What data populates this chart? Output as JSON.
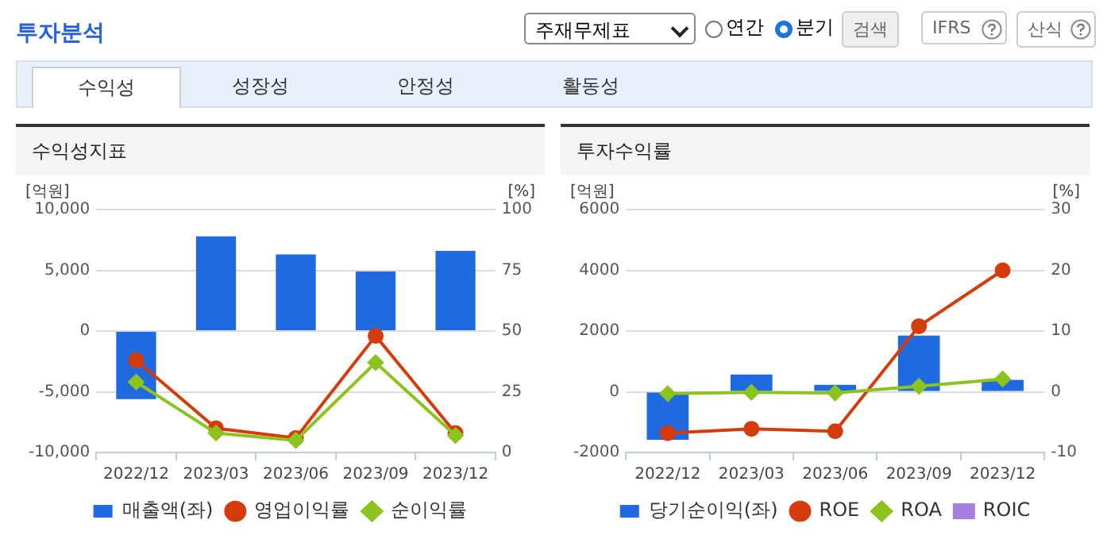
{
  "chart_data": [
    {
      "type": "bar",
      "title": "수익성지표",
      "ylabel": "[억원]",
      "y2label": "[%]",
      "annotations": [
        "투자분석",
        "주재무제표",
        "연간",
        "분기",
        "검색",
        "IFRS",
        "산식",
        "수익성",
        "성장성",
        "안정성",
        "활동성"
      ],
      "categories": [
        "2022/12",
        "2023/03",
        "2023/06",
        "2023/09",
        "2023/12"
      ],
      "series": [
        {
          "name": "매출액(좌)",
          "color": "#1f6ae0",
          "values": [
            -5600,
            7800,
            6300,
            4900,
            6600
          ]
        },
        {
          "name": "영업이익률",
          "type": "line",
          "axis": "y2",
          "marker": "circle",
          "color": "#d43c0c",
          "values": [
            38,
            10,
            6,
            48,
            8
          ]
        },
        {
          "name": "순이익률",
          "type": "line",
          "axis": "y2",
          "marker": "diamond",
          "color": "#8cc31e",
          "values": [
            29,
            8,
            5,
            37,
            7
          ]
        }
      ],
      "ylim": [
        -10000,
        10000
      ],
      "yticks": [
        {
          "value": -10000,
          "label": "-10,000"
        },
        {
          "value": -5000,
          "label": "-5,000"
        },
        0,
        {
          "value": 5000,
          "label": "5,000"
        },
        {
          "value": 10000,
          "label": "10,000"
        }
      ],
      "y2lim": [
        0,
        100
      ],
      "y2ticks": [
        0,
        25,
        50,
        75,
        100
      ],
      "grid": "y",
      "legend": "bottom"
    },
    {
      "type": "bar",
      "title": "투자수익률",
      "ylabel": "[억원]",
      "y2label": "[%]",
      "categories": [
        "2022/12",
        "2023/03",
        "2023/06",
        "2023/09",
        "2023/12"
      ],
      "series": [
        {
          "name": "당기순이익(좌)",
          "color": "#1f6ae0",
          "values": [
            -1580,
            570,
            230,
            1850,
            390
          ]
        },
        {
          "name": "ROE",
          "type": "line",
          "axis": "y2",
          "marker": "circle",
          "color": "#d43c0c",
          "values": [
            -6.8,
            -6.1,
            -6.5,
            10.8,
            20
          ]
        },
        {
          "name": "ROA",
          "type": "line",
          "axis": "y2",
          "marker": "diamond",
          "color": "#8cc31e",
          "values": [
            -0.3,
            -0.1,
            -0.2,
            0.9,
            2.1
          ]
        },
        {
          "name": "ROIC",
          "type": "line",
          "axis": "y2",
          "marker": "square",
          "color": "#a77fdf",
          "values": [
            null,
            null,
            null,
            null,
            null
          ]
        }
      ],
      "ylim": [
        -2000,
        6000
      ],
      "yticks": [
        -2000,
        0,
        2000,
        4000,
        6000
      ],
      "y2lim": [
        -10,
        30
      ],
      "y2ticks": [
        -10,
        0,
        10,
        20,
        30
      ],
      "grid": "y",
      "legend": "bottom"
    }
  ]
}
